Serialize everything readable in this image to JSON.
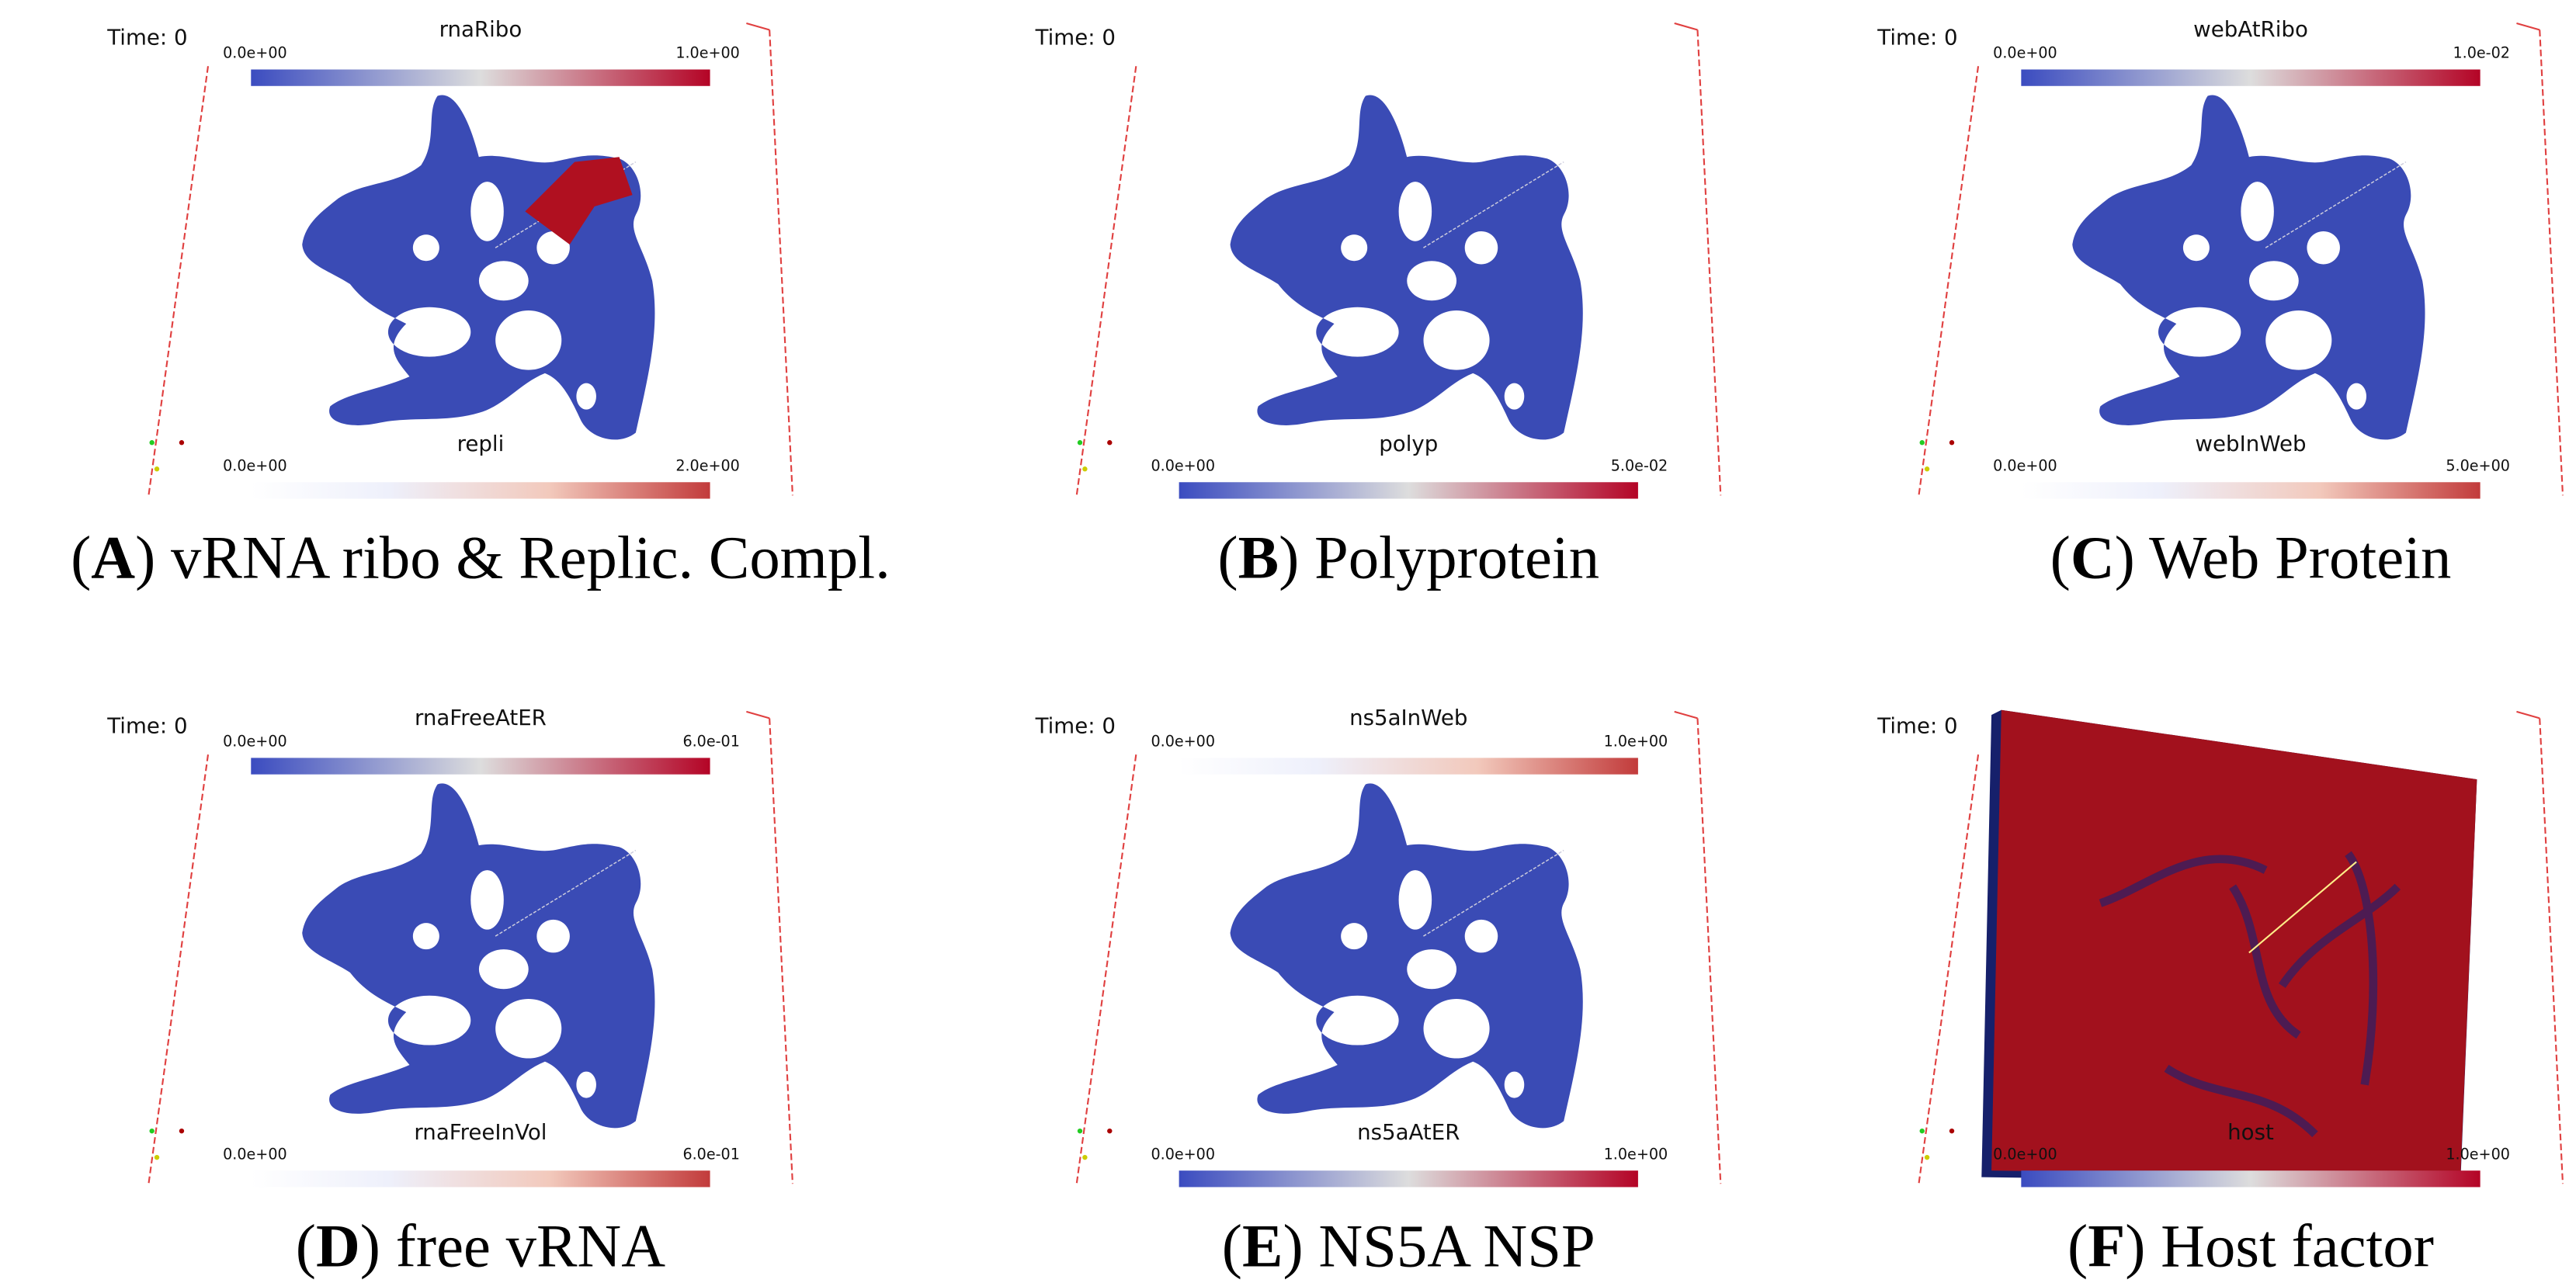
{
  "panels": [
    {
      "time": "Time: 0",
      "top_bar": {
        "title": "rnaRibo",
        "min": "0.0e+00",
        "max": "1.0e+00",
        "style": "full"
      },
      "bottom_bar": {
        "title": "repli",
        "min": "0.0e+00",
        "max": "2.0e+00",
        "style": "light"
      },
      "caption": [
        "(",
        "A",
        ") vRNA ribo & Replic. Compl."
      ]
    },
    {
      "time": "Time: 0",
      "bottom_bar": {
        "title": "polyp",
        "min": "0.0e+00",
        "max": "5.0e-02",
        "style": "full"
      },
      "caption": [
        "(",
        "B",
        ") Polyprotein"
      ]
    },
    {
      "time": "Time: 0",
      "top_bar": {
        "title": "webAtRibo",
        "min": "0.0e+00",
        "max": "1.0e-02",
        "style": "full"
      },
      "bottom_bar": {
        "title": "webInWeb",
        "min": "0.0e+00",
        "max": "5.0e+00",
        "style": "light"
      },
      "caption": [
        "(",
        "C",
        ") Web Protein"
      ]
    },
    {
      "time": "Time: 0",
      "top_bar": {
        "title": "rnaFreeAtER",
        "min": "0.0e+00",
        "max": "6.0e-01",
        "style": "full"
      },
      "bottom_bar": {
        "title": "rnaFreeInVol",
        "min": "0.0e+00",
        "max": "6.0e-01",
        "style": "light"
      },
      "caption": [
        "(",
        "D",
        ") free vRNA"
      ]
    },
    {
      "time": "Time: 0",
      "top_bar": {
        "title": "ns5aInWeb",
        "min": "0.0e+00",
        "max": "1.0e+00",
        "style": "light"
      },
      "bottom_bar": {
        "title": "ns5aAtER",
        "min": "0.0e+00",
        "max": "1.0e+00",
        "style": "full"
      },
      "caption": [
        "(",
        "E",
        ") NS5A NSP"
      ]
    },
    {
      "time": "Time: 0",
      "bottom_bar": {
        "title": "host",
        "min": "0.0e+00",
        "max": "1.0e+00",
        "style": "full"
      },
      "caption": [
        "(",
        "F",
        ") Host factor"
      ]
    }
  ]
}
